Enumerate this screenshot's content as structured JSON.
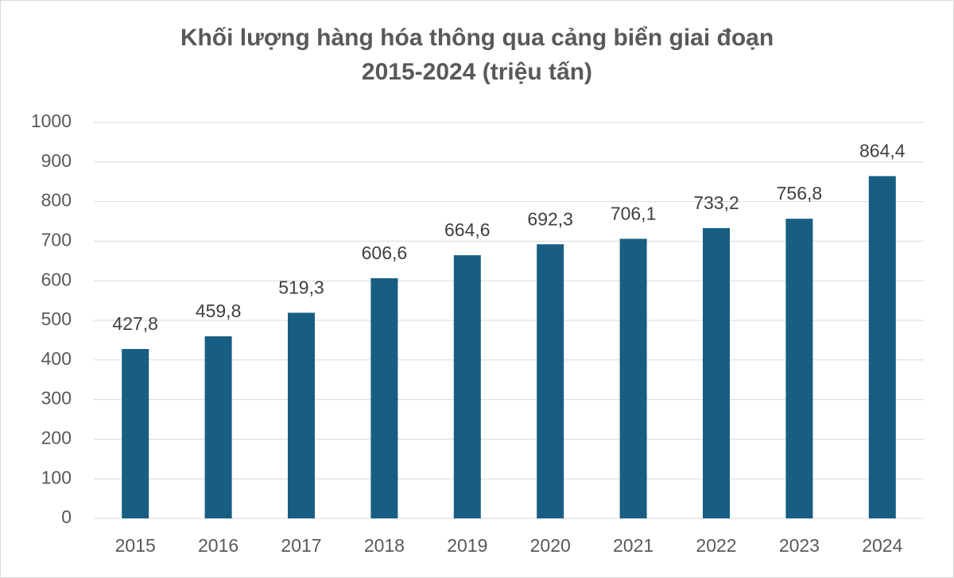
{
  "chart_data": {
    "type": "bar",
    "title": [
      "Khối lượng hàng hóa thông qua cảng biển giai đoạn",
      "2015-2024 (triệu tấn)"
    ],
    "categories": [
      "2015",
      "2016",
      "2017",
      "2018",
      "2019",
      "2020",
      "2021",
      "2022",
      "2023",
      "2024"
    ],
    "values": [
      427.8,
      459.8,
      519.3,
      606.6,
      664.6,
      692.3,
      706.1,
      733.2,
      756.8,
      864.4
    ],
    "value_labels": [
      "427,8",
      "459,8",
      "519,3",
      "606,6",
      "664,6",
      "692,3",
      "706,1",
      "733,2",
      "756,8",
      "864,4"
    ],
    "color": "#175e82",
    "ylim": [
      0,
      1000
    ],
    "yticks": [
      0,
      100,
      200,
      300,
      400,
      500,
      600,
      700,
      800,
      900,
      1000
    ],
    "grid": true
  }
}
